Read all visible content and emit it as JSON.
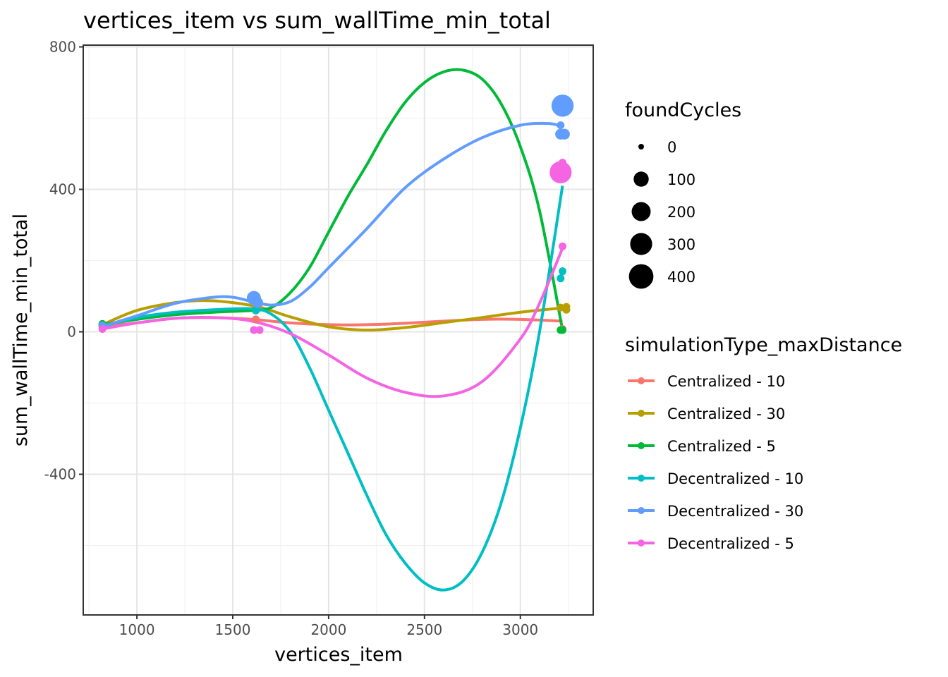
{
  "chart_data": {
    "type": "scatter",
    "title": "vertices_item  vs  sum_wallTime_min_total",
    "xlabel": "vertices_item",
    "ylabel": "sum_wallTime_min_total",
    "xlim": [
      720,
      3380
    ],
    "ylim": [
      -795,
      805
    ],
    "x_ticks": [
      1000,
      1500,
      2000,
      2500,
      3000
    ],
    "y_ticks": [
      -400,
      0,
      400,
      800
    ],
    "x_tick_labels": [
      "1000",
      "1500",
      "2000",
      "2500",
      "3000"
    ],
    "y_tick_labels": [
      "-400",
      "0",
      "400",
      "800"
    ],
    "grid": true,
    "legend_placement": "right",
    "size_legend": {
      "title": "foundCycles",
      "entries": [
        {
          "label": "0",
          "value": 0
        },
        {
          "label": "100",
          "value": 100
        },
        {
          "label": "200",
          "value": 200
        },
        {
          "label": "300",
          "value": 300
        },
        {
          "label": "400",
          "value": 400
        }
      ]
    },
    "color_legend_title": "simulationType_maxDistance",
    "series": [
      {
        "name": "Centralized - 10",
        "color": "#F8766D",
        "points": [
          [
            820,
            18,
            5
          ],
          [
            1620,
            35,
            5
          ],
          [
            3210,
            5,
            5
          ],
          [
            3220,
            8,
            5
          ]
        ],
        "smooth": [
          [
            820,
            15
          ],
          [
            1000,
            25
          ],
          [
            1200,
            38
          ],
          [
            1400,
            40
          ],
          [
            1600,
            35
          ],
          [
            1800,
            25
          ],
          [
            2000,
            20
          ],
          [
            2200,
            20
          ],
          [
            2400,
            24
          ],
          [
            2600,
            30
          ],
          [
            2800,
            35
          ],
          [
            3000,
            35
          ],
          [
            3220,
            30
          ]
        ]
      },
      {
        "name": "Centralized - 30",
        "color": "#B79F00",
        "points": [
          [
            820,
            22,
            5
          ],
          [
            1620,
            70,
            5
          ],
          [
            3210,
            68,
            5
          ],
          [
            3240,
            62,
            5
          ],
          [
            3240,
            70,
            5
          ]
        ],
        "smooth": [
          [
            820,
            20
          ],
          [
            1000,
            60
          ],
          [
            1200,
            82
          ],
          [
            1350,
            88
          ],
          [
            1500,
            82
          ],
          [
            1650,
            68
          ],
          [
            1800,
            42
          ],
          [
            2000,
            14
          ],
          [
            2200,
            5
          ],
          [
            2400,
            12
          ],
          [
            2600,
            26
          ],
          [
            2800,
            40
          ],
          [
            3000,
            55
          ],
          [
            3240,
            68
          ]
        ]
      },
      {
        "name": "Centralized - 5",
        "color": "#00BA38",
        "points": [
          [
            820,
            22,
            5
          ],
          [
            1620,
            60,
            5
          ],
          [
            3210,
            5,
            5
          ],
          [
            3220,
            5,
            5
          ]
        ],
        "smooth": [
          [
            820,
            20
          ],
          [
            1000,
            35
          ],
          [
            1200,
            48
          ],
          [
            1400,
            55
          ],
          [
            1600,
            60
          ],
          [
            1700,
            68
          ],
          [
            1800,
            110
          ],
          [
            1900,
            180
          ],
          [
            2000,
            280
          ],
          [
            2100,
            380
          ],
          [
            2200,
            470
          ],
          [
            2300,
            565
          ],
          [
            2400,
            645
          ],
          [
            2500,
            700
          ],
          [
            2600,
            730
          ],
          [
            2700,
            735
          ],
          [
            2800,
            710
          ],
          [
            2900,
            640
          ],
          [
            3000,
            520
          ],
          [
            3100,
            340
          ],
          [
            3220,
            5
          ]
        ]
      },
      {
        "name": "Decentralized - 10",
        "color": "#00BFC4",
        "points": [
          [
            820,
            15,
            5
          ],
          [
            1620,
            60,
            5
          ],
          [
            3210,
            150,
            5
          ],
          [
            3220,
            170,
            5
          ],
          [
            3220,
            635,
            300
          ]
        ],
        "smooth": [
          [
            820,
            15
          ],
          [
            1000,
            40
          ],
          [
            1200,
            55
          ],
          [
            1400,
            62
          ],
          [
            1600,
            65
          ],
          [
            1700,
            50
          ],
          [
            1800,
            0
          ],
          [
            1900,
            -100
          ],
          [
            2000,
            -220
          ],
          [
            2100,
            -340
          ],
          [
            2200,
            -460
          ],
          [
            2300,
            -570
          ],
          [
            2400,
            -650
          ],
          [
            2500,
            -705
          ],
          [
            2600,
            -725
          ],
          [
            2700,
            -700
          ],
          [
            2800,
            -620
          ],
          [
            2900,
            -480
          ],
          [
            3000,
            -270
          ],
          [
            3100,
            0
          ],
          [
            3220,
            410
          ]
        ]
      },
      {
        "name": "Decentralized - 30",
        "color": "#619CFF",
        "points": [
          [
            820,
            18,
            5
          ],
          [
            1610,
            95,
            80
          ],
          [
            1630,
            82,
            30
          ],
          [
            3210,
            555,
            30
          ],
          [
            3230,
            555,
            30
          ],
          [
            3210,
            580,
            5
          ],
          [
            3220,
            635,
            300
          ],
          [
            3240,
            632,
            60
          ]
        ],
        "smooth": [
          [
            820,
            15
          ],
          [
            1000,
            45
          ],
          [
            1200,
            80
          ],
          [
            1400,
            97
          ],
          [
            1500,
            97
          ],
          [
            1600,
            85
          ],
          [
            1700,
            75
          ],
          [
            1800,
            85
          ],
          [
            1900,
            125
          ],
          [
            2000,
            180
          ],
          [
            2200,
            290
          ],
          [
            2400,
            405
          ],
          [
            2600,
            485
          ],
          [
            2800,
            545
          ],
          [
            3000,
            580
          ],
          [
            3150,
            585
          ],
          [
            3220,
            575
          ]
        ]
      },
      {
        "name": "Decentralized - 5",
        "color": "#F564E3",
        "points": [
          [
            820,
            8,
            5
          ],
          [
            1610,
            5,
            5
          ],
          [
            1640,
            5,
            5
          ],
          [
            3210,
            448,
            300
          ],
          [
            3220,
            475,
            5
          ],
          [
            3220,
            240,
            5
          ]
        ],
        "smooth": [
          [
            820,
            8
          ],
          [
            1000,
            25
          ],
          [
            1200,
            38
          ],
          [
            1400,
            40
          ],
          [
            1600,
            30
          ],
          [
            1800,
            -5
          ],
          [
            2000,
            -65
          ],
          [
            2200,
            -130
          ],
          [
            2400,
            -170
          ],
          [
            2600,
            -180
          ],
          [
            2800,
            -140
          ],
          [
            3000,
            -20
          ],
          [
            3100,
            80
          ],
          [
            3220,
            235
          ]
        ]
      }
    ]
  }
}
